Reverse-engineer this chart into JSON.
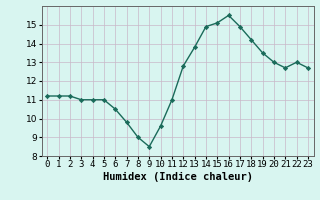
{
  "x": [
    0,
    1,
    2,
    3,
    4,
    5,
    6,
    7,
    8,
    9,
    10,
    11,
    12,
    13,
    14,
    15,
    16,
    17,
    18,
    19,
    20,
    21,
    22,
    23
  ],
  "y": [
    11.2,
    11.2,
    11.2,
    11.0,
    11.0,
    11.0,
    10.5,
    9.8,
    9.0,
    8.5,
    9.6,
    11.0,
    12.8,
    13.8,
    14.9,
    15.1,
    15.5,
    14.9,
    14.2,
    13.5,
    13.0,
    12.7,
    13.0,
    12.7
  ],
  "line_color": "#1a6b5a",
  "marker": "D",
  "marker_size": 2.2,
  "bg_color": "#d8f5f0",
  "grid_color": "#c9b8c8",
  "xlabel": "Humidex (Indice chaleur)",
  "xlim": [
    -0.5,
    23.5
  ],
  "ylim": [
    8,
    16
  ],
  "yticks": [
    8,
    9,
    10,
    11,
    12,
    13,
    14,
    15
  ],
  "xtick_labels": [
    "0",
    "1",
    "2",
    "3",
    "4",
    "5",
    "6",
    "7",
    "8",
    "9",
    "10",
    "11",
    "12",
    "13",
    "14",
    "15",
    "16",
    "17",
    "18",
    "19",
    "20",
    "21",
    "22",
    "23"
  ],
  "xlabel_fontsize": 7.5,
  "tick_fontsize": 6.5,
  "line_width": 1.0
}
